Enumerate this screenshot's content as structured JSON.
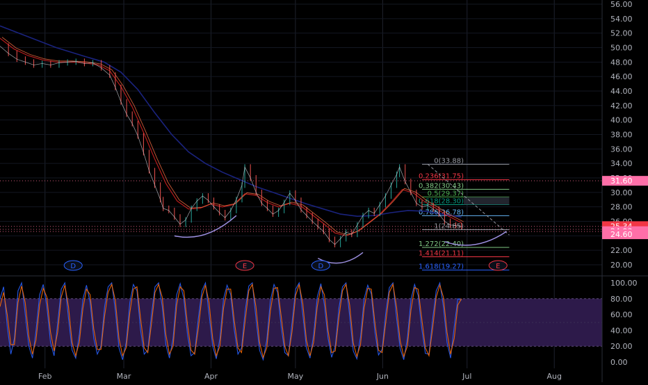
{
  "chart_data": {
    "type": "line",
    "months": [
      {
        "label": "Feb",
        "day": 31
      },
      {
        "label": "Mar",
        "day": 59
      },
      {
        "label": "Apr",
        "day": 90
      },
      {
        "label": "May",
        "day": 120
      },
      {
        "label": "Jun",
        "day": 151
      },
      {
        "label": "Jul",
        "day": 181
      },
      {
        "label": "Aug",
        "day": 212
      }
    ],
    "xlim_days": [
      15,
      229
    ],
    "price_panel": {
      "ylim": [
        19,
        56.5
      ],
      "yticks": [
        "56.00",
        "54.00",
        "52.00",
        "50.00",
        "48.00",
        "46.00",
        "44.00",
        "42.00",
        "40.00",
        "38.00",
        "36.00",
        "34.00",
        "32.00",
        "30.00",
        "28.00",
        "26.00",
        "24.00",
        "22.00",
        "20.00"
      ],
      "price_series": [
        [
          15,
          50.2
        ],
        [
          18,
          49.2
        ],
        [
          21,
          48.4
        ],
        [
          24,
          48.0
        ],
        [
          27,
          47.6
        ],
        [
          30,
          47.8
        ],
        [
          33,
          47.6
        ],
        [
          36,
          47.9
        ],
        [
          39,
          48.0
        ],
        [
          42,
          48.1
        ],
        [
          45,
          47.8
        ],
        [
          48,
          47.9
        ],
        [
          51,
          47.2
        ],
        [
          54,
          46.2
        ],
        [
          56,
          44.5
        ],
        [
          58,
          42.5
        ],
        [
          60,
          40.8
        ],
        [
          62,
          39.5
        ],
        [
          64,
          37.8
        ],
        [
          66,
          35.5
        ],
        [
          68,
          33.0
        ],
        [
          70,
          31.0
        ],
        [
          72,
          29.0
        ],
        [
          73,
          27.8
        ],
        [
          75,
          27.5
        ],
        [
          77,
          26.6
        ],
        [
          79,
          25.6
        ],
        [
          81,
          26.2
        ],
        [
          83,
          27.8
        ],
        [
          85,
          28.8
        ],
        [
          87,
          29.5
        ],
        [
          89,
          28.9
        ],
        [
          91,
          28.0
        ],
        [
          93,
          27.2
        ],
        [
          95,
          26.5
        ],
        [
          97,
          27.5
        ],
        [
          99,
          29.0
        ],
        [
          101,
          31.0
        ],
        [
          102,
          33.5
        ],
        [
          104,
          32.0
        ],
        [
          106,
          30.0
        ],
        [
          108,
          28.5
        ],
        [
          110,
          27.8
        ],
        [
          112,
          27.0
        ],
        [
          114,
          27.5
        ],
        [
          116,
          28.6
        ],
        [
          118,
          29.9
        ],
        [
          120,
          28.9
        ],
        [
          122,
          27.6
        ],
        [
          124,
          26.8
        ],
        [
          126,
          26.0
        ],
        [
          128,
          25.3
        ],
        [
          130,
          24.6
        ],
        [
          132,
          23.5
        ],
        [
          134,
          22.8
        ],
        [
          136,
          23.6
        ],
        [
          138,
          24.5
        ],
        [
          140,
          24.2
        ],
        [
          142,
          25.5
        ],
        [
          144,
          26.8
        ],
        [
          146,
          27.5
        ],
        [
          148,
          27.1
        ],
        [
          150,
          28.3
        ],
        [
          152,
          29.5
        ],
        [
          154,
          31.0
        ],
        [
          156,
          32.5
        ],
        [
          157,
          33.5
        ],
        [
          159,
          31.5
        ],
        [
          161,
          30.0
        ],
        [
          163,
          28.5
        ],
        [
          165,
          28.0
        ],
        [
          167,
          28.2
        ],
        [
          169,
          27.7
        ],
        [
          171,
          27.0
        ],
        [
          173,
          26.0
        ],
        [
          175,
          25.5
        ],
        [
          177,
          25.4
        ],
        [
          179,
          25.3
        ]
      ],
      "ma_red_series": [
        [
          15,
          51.3
        ],
        [
          20,
          49.8
        ],
        [
          25,
          48.9
        ],
        [
          30,
          48.3
        ],
        [
          35,
          48.0
        ],
        [
          40,
          48.0
        ],
        [
          45,
          47.9
        ],
        [
          50,
          47.6
        ],
        [
          54,
          46.8
        ],
        [
          58,
          44.6
        ],
        [
          62,
          41.8
        ],
        [
          66,
          38.3
        ],
        [
          70,
          34.6
        ],
        [
          74,
          31.2
        ],
        [
          78,
          28.8
        ],
        [
          82,
          27.7
        ],
        [
          86,
          27.8
        ],
        [
          90,
          28.4
        ],
        [
          94,
          28.0
        ],
        [
          98,
          28.3
        ],
        [
          102,
          29.8
        ],
        [
          106,
          29.6
        ],
        [
          110,
          28.6
        ],
        [
          114,
          28.0
        ],
        [
          118,
          28.5
        ],
        [
          122,
          28.1
        ],
        [
          126,
          26.9
        ],
        [
          130,
          25.7
        ],
        [
          134,
          24.4
        ],
        [
          138,
          24.0
        ],
        [
          142,
          24.6
        ],
        [
          146,
          25.8
        ],
        [
          150,
          27.0
        ],
        [
          154,
          28.6
        ],
        [
          158,
          30.4
        ],
        [
          162,
          29.9
        ],
        [
          166,
          28.7
        ],
        [
          170,
          27.8
        ],
        [
          174,
          26.8
        ],
        [
          179,
          25.8
        ]
      ],
      "ma_long_series": [
        [
          15,
          53.0
        ],
        [
          25,
          51.5
        ],
        [
          35,
          50.0
        ],
        [
          45,
          48.8
        ],
        [
          52,
          48.0
        ],
        [
          58,
          46.6
        ],
        [
          64,
          44.2
        ],
        [
          70,
          41.0
        ],
        [
          76,
          38.0
        ],
        [
          82,
          35.6
        ],
        [
          88,
          34.0
        ],
        [
          94,
          32.8
        ],
        [
          100,
          31.8
        ],
        [
          106,
          30.8
        ],
        [
          112,
          30.0
        ],
        [
          118,
          29.2
        ],
        [
          124,
          28.4
        ],
        [
          130,
          27.7
        ],
        [
          136,
          27.0
        ],
        [
          142,
          26.7
        ],
        [
          148,
          26.8
        ],
        [
          154,
          27.2
        ],
        [
          160,
          27.5
        ],
        [
          166,
          27.4
        ],
        [
          172,
          27.0
        ],
        [
          179,
          26.6
        ]
      ],
      "fib_levels": [
        {
          "label": "0(33.88)",
          "value": 33.88,
          "color": "#9598a1"
        },
        {
          "label": "0.236(31.75)",
          "value": 31.75,
          "color": "#f23645"
        },
        {
          "label": "0.382(30.43)",
          "value": 30.43,
          "color": "#81c784"
        },
        {
          "label": "0.5(29.37)",
          "value": 29.37,
          "color": "#4caf50"
        },
        {
          "label": "0.618(28.30)",
          "value": 28.3,
          "color": "#089981"
        },
        {
          "label": "0.786(26.78)",
          "value": 26.78,
          "color": "#64b5f6"
        },
        {
          "label": "1(24.85)",
          "value": 24.85,
          "color": "#9598a1"
        },
        {
          "label": "1.272(22.40)",
          "value": 22.4,
          "color": "#81c784"
        },
        {
          "label": "1.414(21.11)",
          "value": 21.11,
          "color": "#f23645"
        },
        {
          "label": "1.618(19.27)",
          "value": 19.27,
          "color": "#2962ff"
        }
      ],
      "fib_x_range_days": [
        165,
        196
      ],
      "trend_line": [
        [
          167,
          33.9
        ],
        [
          196,
          24.1
        ]
      ],
      "dotted_levels": [
        31.6,
        25.3,
        24.9,
        24.6
      ],
      "price_tags": [
        {
          "label": "31.60",
          "value": 31.6,
          "color": "#ff6fa8"
        },
        {
          "label": "25.34",
          "value": 25.34,
          "color": "#f23645"
        },
        {
          "label": "24.93",
          "value": 24.93,
          "color": "#ff6fa8"
        },
        {
          "label": "24.60",
          "value": 24.6,
          "color": "#ff6fa8"
        }
      ],
      "arcs": [
        {
          "from": [
            77,
            24.0
          ],
          "to": [
            99,
            26.8
          ],
          "bottom": 23.6
        },
        {
          "from": [
            128,
            20.9
          ],
          "to": [
            144,
            21.7
          ],
          "bottom": 19.8
        },
        {
          "from": [
            173,
            23.2
          ],
          "to": [
            195,
            24.6
          ],
          "bottom": 22.3
        }
      ],
      "markers": [
        {
          "label": "D",
          "day": 41,
          "color": "#2962ff"
        },
        {
          "label": "E",
          "day": 102,
          "color": "#f23645"
        },
        {
          "label": "D",
          "day": 129,
          "color": "#2962ff"
        },
        {
          "label": "E",
          "day": 192,
          "color": "#f23645"
        }
      ]
    },
    "osc_panel": {
      "ylim": [
        -5,
        105
      ],
      "yticks": [
        "100.00",
        "80.00",
        "60.00",
        "40.00",
        "20.00",
        "0.00"
      ],
      "band": [
        20,
        80
      ],
      "midline": 50,
      "series": [
        {
          "color": "#2962ff",
          "values": [
            80,
            95,
            45,
            10,
            30,
            90,
            100,
            60,
            20,
            5,
            40,
            85,
            98,
            70,
            25,
            8,
            50,
            92,
            100,
            55,
            15,
            5,
            35,
            80,
            97,
            75,
            30,
            10,
            20,
            70,
            95,
            100,
            65,
            18,
            3,
            25,
            75,
            98,
            90,
            40,
            10,
            15,
            60,
            95,
            100,
            70,
            22,
            5,
            30,
            85,
            99,
            80,
            35,
            8,
            12,
            55,
            90,
            100,
            60,
            20,
            4,
            30,
            80,
            97,
            85,
            40,
            10,
            18,
            65,
            96,
            100,
            55,
            15,
            3,
            28,
            78,
            98,
            88,
            45,
            12,
            8,
            50,
            92,
            100,
            60,
            18,
            5,
            35,
            82,
            99,
            72,
            30,
            6,
            20,
            68,
            95,
            100,
            58,
            14,
            4,
            32,
            80,
            97,
            86,
            38,
            9,
            16,
            62,
            94,
            100,
            56,
            17,
            3,
            30,
            79,
            98,
            84,
            42,
            11,
            10,
            54,
            90,
            100,
            70,
            25,
            5,
            45,
            80,
            78
          ]
        },
        {
          "color": "#ff6d00",
          "values": [
            70,
            88,
            60,
            22,
            22,
            75,
            96,
            75,
            32,
            10,
            28,
            72,
            93,
            82,
            38,
            14,
            38,
            82,
            97,
            70,
            25,
            8,
            25,
            68,
            92,
            85,
            42,
            16,
            16,
            58,
            88,
            98,
            78,
            30,
            8,
            18,
            62,
            92,
            95,
            55,
            18,
            12,
            48,
            88,
            98,
            82,
            35,
            10,
            20,
            72,
            95,
            90,
            48,
            15,
            10,
            42,
            82,
            97,
            75,
            30,
            8,
            20,
            68,
            92,
            92,
            52,
            18,
            12,
            52,
            90,
            98,
            70,
            25,
            6,
            18,
            65,
            93,
            94,
            58,
            20,
            8,
            38,
            84,
            98,
            74,
            28,
            8,
            25,
            70,
            95,
            85,
            40,
            12,
            14,
            56,
            90,
            98,
            72,
            24,
            7,
            22,
            68,
            93,
            92,
            50,
            15,
            12,
            50,
            88,
            98,
            70,
            27,
            7,
            20,
            66,
            94,
            92,
            55,
            18,
            8,
            42,
            82,
            97,
            82,
            38,
            10,
            30,
            72,
            80
          ]
        }
      ]
    }
  }
}
